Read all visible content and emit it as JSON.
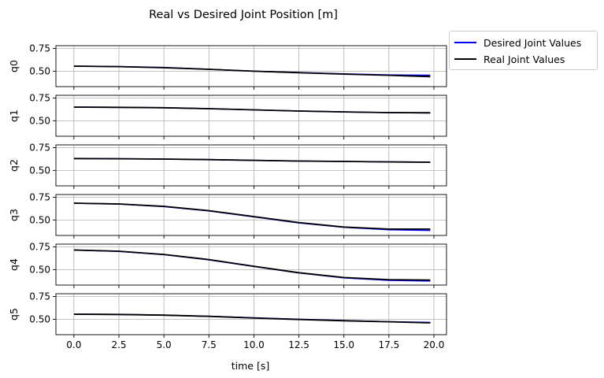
{
  "chart_data": {
    "type": "line",
    "title": "Real vs Desired Joint Position [m]",
    "xlabel": "time [s]",
    "xlim": [
      -1,
      20.7
    ],
    "ylim": [
      0.33,
      0.78
    ],
    "xticks": [
      0.0,
      2.5,
      5.0,
      7.5,
      10.0,
      12.5,
      15.0,
      17.5,
      20.0
    ],
    "xtick_labels": [
      "0.0",
      "2.5",
      "5.0",
      "7.5",
      "10.0",
      "12.5",
      "15.0",
      "17.5",
      "20.0"
    ],
    "yticks": [
      0.5,
      0.75
    ],
    "ytick_labels": [
      "0.50",
      "0.75"
    ],
    "grid": true,
    "legend": {
      "placement": "outside-top-right",
      "entries": [
        {
          "label": "Desired Joint Values",
          "color": "#0000ff"
        },
        {
          "label": "Real Joint Values",
          "color": "#000000"
        }
      ]
    },
    "x": [
      0,
      2.5,
      5,
      7.5,
      10,
      12.5,
      15,
      17.5,
      19.8
    ],
    "subplots": [
      {
        "ylabel": "q0",
        "series": [
          {
            "name": "Desired Joint Values",
            "values": [
              0.555,
              0.55,
              0.54,
              0.52,
              0.5,
              0.485,
              0.47,
              0.458,
              0.455
            ]
          },
          {
            "name": "Real Joint Values",
            "values": [
              0.555,
              0.55,
              0.538,
              0.52,
              0.5,
              0.483,
              0.468,
              0.455,
              0.44
            ]
          }
        ]
      },
      {
        "ylabel": "q1",
        "series": [
          {
            "name": "Desired Joint Values",
            "values": [
              0.65,
              0.648,
              0.643,
              0.633,
              0.62,
              0.607,
              0.597,
              0.59,
              0.585
            ]
          },
          {
            "name": "Real Joint Values",
            "values": [
              0.65,
              0.648,
              0.643,
              0.633,
              0.62,
              0.607,
              0.597,
              0.59,
              0.588
            ]
          }
        ]
      },
      {
        "ylabel": "q2",
        "series": [
          {
            "name": "Desired Joint Values",
            "values": [
              0.63,
              0.628,
              0.624,
              0.618,
              0.61,
              0.603,
              0.598,
              0.593,
              0.59
            ]
          },
          {
            "name": "Real Joint Values",
            "values": [
              0.63,
              0.628,
              0.624,
              0.618,
              0.61,
              0.603,
              0.598,
              0.593,
              0.59
            ]
          }
        ]
      },
      {
        "ylabel": "q3",
        "series": [
          {
            "name": "Desired Joint Values",
            "values": [
              0.685,
              0.675,
              0.648,
              0.6,
              0.535,
              0.468,
              0.42,
              0.393,
              0.385
            ]
          },
          {
            "name": "Real Joint Values",
            "values": [
              0.685,
              0.676,
              0.65,
              0.603,
              0.538,
              0.472,
              0.423,
              0.4,
              0.4
            ]
          }
        ]
      },
      {
        "ylabel": "q4",
        "series": [
          {
            "name": "Desired Joint Values",
            "values": [
              0.715,
              0.7,
              0.665,
              0.608,
              0.535,
              0.463,
              0.41,
              0.382,
              0.375
            ]
          },
          {
            "name": "Real Joint Values",
            "values": [
              0.715,
              0.702,
              0.667,
              0.61,
              0.537,
              0.466,
              0.413,
              0.39,
              0.385
            ]
          }
        ]
      },
      {
        "ylabel": "q5",
        "series": [
          {
            "name": "Desired Joint Values",
            "values": [
              0.555,
              0.552,
              0.545,
              0.532,
              0.515,
              0.5,
              0.485,
              0.473,
              0.465
            ]
          },
          {
            "name": "Real Joint Values",
            "values": [
              0.555,
              0.552,
              0.545,
              0.532,
              0.513,
              0.497,
              0.483,
              0.472,
              0.46
            ]
          }
        ]
      }
    ]
  }
}
